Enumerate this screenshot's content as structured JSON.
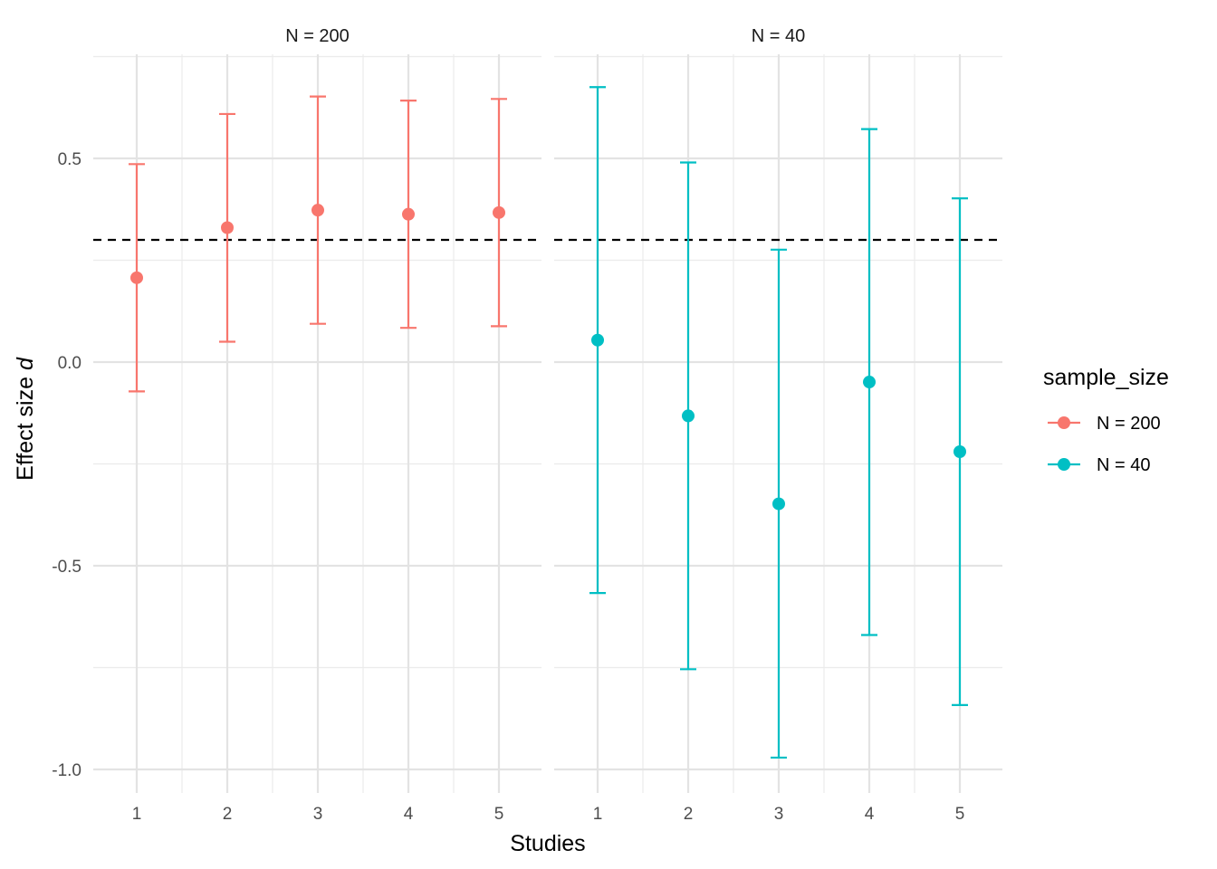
{
  "chart_data": {
    "type": "errorbar",
    "xlabel": "Studies",
    "ylabel_main": "Effect size ",
    "ylabel_italic": "d",
    "ylim": [
      -1.05,
      0.75
    ],
    "y_ticks": [
      -1.0,
      -0.5,
      0.0,
      0.5
    ],
    "y_tick_labels": [
      "-1.0",
      "-0.5",
      "0.0",
      "0.5"
    ],
    "x_categories": [
      "1",
      "2",
      "3",
      "4",
      "5"
    ],
    "reference_line": 0.3,
    "grid": true,
    "legend_position": "right",
    "legend_title": "sample_size",
    "panels": [
      {
        "label": "N = 200",
        "series": "N = 200",
        "color": "#F8766D",
        "points": [
          {
            "x": "1",
            "y": 0.207,
            "lower": -0.072,
            "upper": 0.486
          },
          {
            "x": "2",
            "y": 0.33,
            "lower": 0.05,
            "upper": 0.609
          },
          {
            "x": "3",
            "y": 0.373,
            "lower": 0.094,
            "upper": 0.652
          },
          {
            "x": "4",
            "y": 0.363,
            "lower": 0.084,
            "upper": 0.642
          },
          {
            "x": "5",
            "y": 0.367,
            "lower": 0.088,
            "upper": 0.646
          }
        ]
      },
      {
        "label": "N = 40",
        "series": "N = 40",
        "color": "#00BFC4",
        "points": [
          {
            "x": "1",
            "y": 0.054,
            "lower": -0.567,
            "upper": 0.675
          },
          {
            "x": "2",
            "y": -0.132,
            "lower": -0.754,
            "upper": 0.49
          },
          {
            "x": "3",
            "y": -0.348,
            "lower": -0.971,
            "upper": 0.276
          },
          {
            "x": "4",
            "y": -0.049,
            "lower": -0.67,
            "upper": 0.572
          },
          {
            "x": "5",
            "y": -0.22,
            "lower": -0.842,
            "upper": 0.402
          }
        ]
      }
    ],
    "legend_items": [
      {
        "label": "N = 200",
        "color": "#F8766D"
      },
      {
        "label": "N = 40",
        "color": "#00BFC4"
      }
    ]
  }
}
